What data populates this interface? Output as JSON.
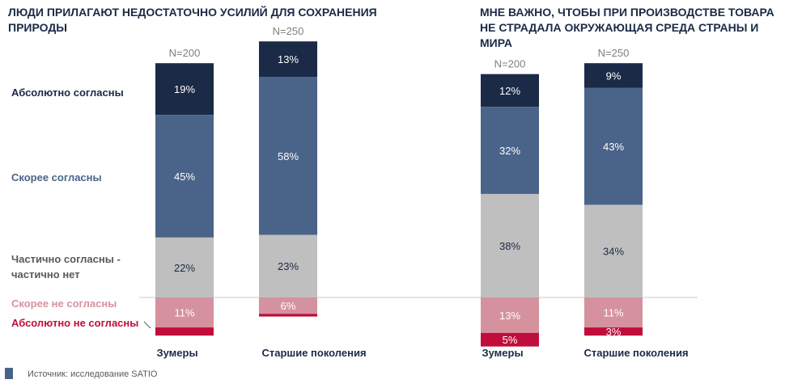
{
  "colors": {
    "absolutely_agree": "#1b2a47",
    "rather_agree": "#4a6389",
    "partially": "#bfbfbf",
    "rather_disagree": "#d5929e",
    "absolutely_disagree": "#c00d3c",
    "title": "#1b2a47",
    "source_marker": "#4a6389"
  },
  "legend": [
    {
      "label": "Абсолютно согласны",
      "color": "#1b2a47"
    },
    {
      "label": "Скорее согласны",
      "color": "#4a6389"
    },
    {
      "label": "Частично согласны -",
      "label2": "частично нет",
      "color": "#595959"
    },
    {
      "label": "Скорее не согласны",
      "color": "#d5929e"
    },
    {
      "label": "Абсолютно не согласны",
      "color": "#c00d3c"
    }
  ],
  "chart_data": [
    {
      "type": "bar",
      "stacked": true,
      "title": "ЛЮДИ ПРИЛАГАЮТ НЕДОСТАТОЧНО УСИЛИЙ ДЛЯ СОХРАНЕНИЯ ПРИРОДЫ",
      "categories": [
        "Зумеры",
        "Старшие поколения"
      ],
      "sample_sizes": [
        "N=200",
        "N=250"
      ],
      "series": [
        {
          "name": "Абсолютно согласны",
          "values": [
            19,
            13
          ],
          "labels": [
            "19%",
            "13%"
          ]
        },
        {
          "name": "Скорее согласны",
          "values": [
            45,
            58
          ],
          "labels": [
            "45%",
            "58%"
          ]
        },
        {
          "name": "Частично согласны - частично нет",
          "values": [
            22,
            23
          ],
          "labels": [
            "22%",
            "23%"
          ]
        },
        {
          "name": "Скорее не согласны",
          "values": [
            11,
            6
          ],
          "labels": [
            "11%",
            "6%"
          ]
        },
        {
          "name": "Абсолютно не согласны",
          "values": [
            3,
            1
          ],
          "labels": [
            "",
            ""
          ]
        }
      ]
    },
    {
      "type": "bar",
      "stacked": true,
      "title": "МНЕ ВАЖНО, ЧТОБЫ ПРИ ПРОИЗВОДСТВЕ ТОВАРА НЕ СТРАДАЛА ОКРУЖАЮЩАЯ СРЕДА СТРАНЫ И МИРА",
      "categories": [
        "Зумеры",
        "Старшие поколения"
      ],
      "sample_sizes": [
        "N=200",
        "N=250"
      ],
      "series": [
        {
          "name": "Абсолютно согласны",
          "values": [
            12,
            9
          ],
          "labels": [
            "12%",
            "9%"
          ]
        },
        {
          "name": "Скорее согласны",
          "values": [
            32,
            43
          ],
          "labels": [
            "32%",
            "43%"
          ]
        },
        {
          "name": "Частично согласны - частично нет",
          "values": [
            38,
            34
          ],
          "labels": [
            "38%",
            "34%"
          ]
        },
        {
          "name": "Скорее не согласны",
          "values": [
            13,
            11
          ],
          "labels": [
            "13%",
            "11%"
          ]
        },
        {
          "name": "Абсолютно не согласны",
          "values": [
            5,
            3
          ],
          "labels": [
            "5%",
            "3%"
          ]
        }
      ]
    }
  ],
  "source": "Источник: исследование SATIO"
}
